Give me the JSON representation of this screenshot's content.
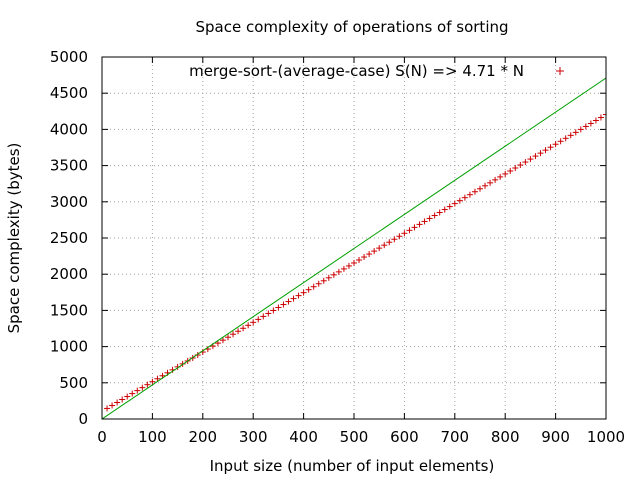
{
  "chart_data": {
    "type": "scatter",
    "title": "Space complexity of operations of sorting",
    "xlabel": "Input size (number of input elements)",
    "ylabel": "Space complexity (bytes)",
    "xlim": [
      0,
      1000
    ],
    "ylim": [
      0,
      5000
    ],
    "xticks": [
      0,
      100,
      200,
      300,
      400,
      500,
      600,
      700,
      800,
      900,
      1000
    ],
    "yticks": [
      0,
      500,
      1000,
      1500,
      2000,
      2500,
      3000,
      3500,
      4000,
      4500,
      5000
    ],
    "grid": true,
    "legend_position": "top-right",
    "series": [
      {
        "name": "merge-sort-(average-case) S(N) => 4.71 * N",
        "kind": "points",
        "marker": "+",
        "color": "#cc0000",
        "x": [
          10,
          20,
          30,
          40,
          50,
          60,
          70,
          80,
          90,
          100,
          110,
          120,
          130,
          140,
          150,
          160,
          170,
          180,
          190,
          200,
          210,
          220,
          230,
          240,
          250,
          260,
          270,
          280,
          290,
          300,
          310,
          320,
          330,
          340,
          350,
          360,
          370,
          380,
          390,
          400,
          410,
          420,
          430,
          440,
          450,
          460,
          470,
          480,
          490,
          500,
          510,
          520,
          530,
          540,
          550,
          560,
          570,
          580,
          590,
          600,
          610,
          620,
          630,
          640,
          650,
          660,
          670,
          680,
          690,
          700,
          710,
          720,
          730,
          740,
          750,
          760,
          770,
          780,
          790,
          800,
          810,
          820,
          830,
          840,
          850,
          860,
          870,
          880,
          890,
          900,
          910,
          920,
          930,
          940,
          950,
          960,
          970,
          980,
          990,
          1000
        ],
        "y": [
          146,
          187,
          228,
          269,
          310,
          351,
          392,
          433,
          474,
          515,
          556,
          597,
          638,
          679,
          720,
          761,
          802,
          843,
          884,
          925,
          966,
          1007,
          1048,
          1089,
          1130,
          1171,
          1212,
          1253,
          1294,
          1335,
          1376,
          1417,
          1458,
          1499,
          1540,
          1581,
          1622,
          1663,
          1704,
          1745,
          1786,
          1827,
          1868,
          1909,
          1950,
          1991,
          2032,
          2073,
          2114,
          2155,
          2196,
          2237,
          2278,
          2319,
          2360,
          2401,
          2442,
          2483,
          2524,
          2565,
          2606,
          2647,
          2688,
          2729,
          2770,
          2811,
          2852,
          2893,
          2934,
          2975,
          3016,
          3057,
          3098,
          3139,
          3180,
          3221,
          3262,
          3303,
          3344,
          3385,
          3426,
          3467,
          3508,
          3549,
          3590,
          3631,
          3672,
          3713,
          3754,
          3795,
          3836,
          3877,
          3918,
          3959,
          4000,
          4041,
          4082,
          4123,
          4164,
          4205
        ]
      },
      {
        "kind": "line",
        "color": "#00a000",
        "x": [
          0,
          1000
        ],
        "y": [
          0,
          4710
        ]
      }
    ]
  }
}
